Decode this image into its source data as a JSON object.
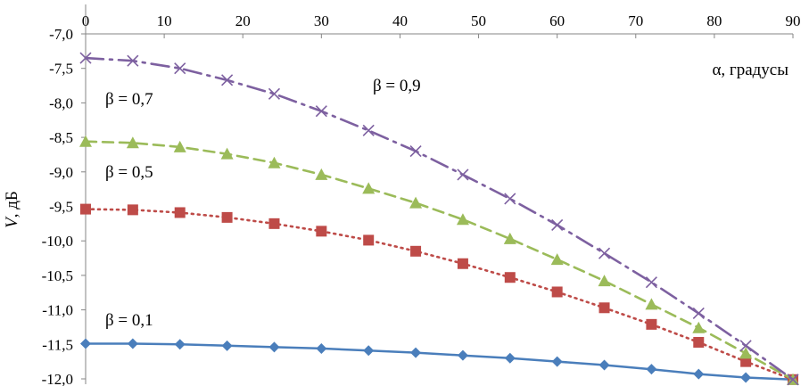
{
  "chart_data": {
    "type": "line",
    "title": "",
    "xlabel": "α, градусы",
    "ylabel_symbol": "V",
    "ylabel_unit": ", дБ",
    "xlim": [
      0,
      90
    ],
    "ylim": [
      -12.0,
      -7.0
    ],
    "x_ticks": [
      0,
      10,
      20,
      30,
      40,
      50,
      60,
      70,
      80,
      90
    ],
    "x_tick_labels": [
      "0",
      "10",
      "20",
      "30",
      "40",
      "50",
      "60",
      "70",
      "80",
      "90"
    ],
    "y_ticks": [
      -7.0,
      -7.5,
      -8.0,
      -8.5,
      -9.0,
      -9.5,
      -10.0,
      -10.5,
      -11.0,
      -11.5,
      -12.0
    ],
    "y_tick_labels": [
      "-7,0",
      "-7,5",
      "-8,0",
      "-8,5",
      "-9,0",
      "-9,5",
      "-10,0",
      "-10,5",
      "-11,0",
      "-11,5",
      "-12,0"
    ],
    "grid": false,
    "x_axis_at_top": true,
    "x": [
      0,
      6,
      12,
      18,
      24,
      30,
      36,
      42,
      48,
      54,
      60,
      66,
      72,
      78,
      84,
      90
    ],
    "series": [
      {
        "name": "β = 0,1",
        "color": "#4a7ebb",
        "line_style": "solid",
        "marker": "diamond",
        "values": [
          -11.49,
          -11.49,
          -11.5,
          -11.52,
          -11.54,
          -11.56,
          -11.59,
          -11.62,
          -11.66,
          -11.7,
          -11.75,
          -11.8,
          -11.86,
          -11.93,
          -11.98,
          -12.01
        ]
      },
      {
        "name": "β = 0,5",
        "color": "#be4b48",
        "line_style": "dotted",
        "marker": "square",
        "values": [
          -9.54,
          -9.55,
          -9.59,
          -9.66,
          -9.75,
          -9.86,
          -9.99,
          -10.15,
          -10.33,
          -10.53,
          -10.74,
          -10.97,
          -11.21,
          -11.47,
          -11.75,
          -12.01
        ]
      },
      {
        "name": "β = 0,7",
        "color": "#9bbb59",
        "line_style": "dashed",
        "marker": "triangle",
        "values": [
          -8.56,
          -8.58,
          -8.64,
          -8.74,
          -8.87,
          -9.04,
          -9.24,
          -9.45,
          -9.69,
          -9.97,
          -10.27,
          -10.58,
          -10.92,
          -11.26,
          -11.63,
          -12.01
        ]
      },
      {
        "name": "β = 0,9",
        "color": "#7d60a0",
        "line_style": "dashdot",
        "marker": "x",
        "values": [
          -7.35,
          -7.39,
          -7.5,
          -7.67,
          -7.87,
          -8.12,
          -8.4,
          -8.7,
          -9.04,
          -9.39,
          -9.77,
          -10.18,
          -10.6,
          -11.05,
          -11.52,
          -12.01
        ]
      }
    ]
  }
}
